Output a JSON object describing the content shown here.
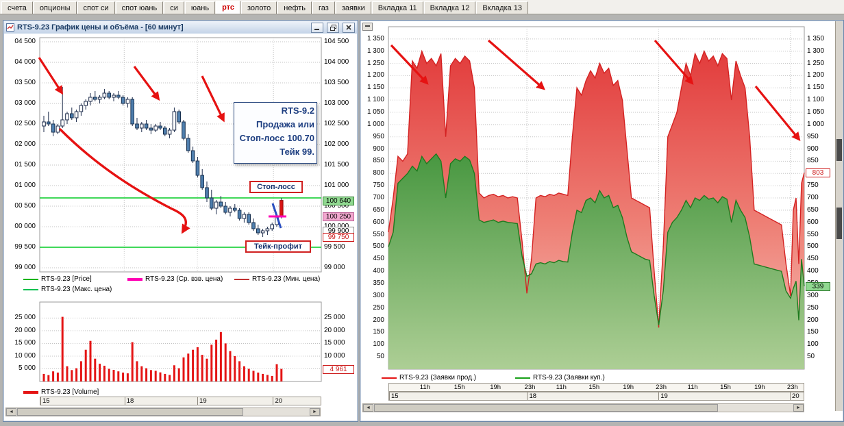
{
  "tabs": {
    "active": "ртс",
    "items": [
      {
        "label": "счета"
      },
      {
        "label": "опционы"
      },
      {
        "label": "спот си"
      },
      {
        "label": "спот юань"
      },
      {
        "label": "си"
      },
      {
        "label": "юань"
      },
      {
        "label": "ртс"
      },
      {
        "label": "золото"
      },
      {
        "label": "нефть"
      },
      {
        "label": "газ"
      },
      {
        "label": "заявки"
      },
      {
        "label": "Вкладка 11"
      },
      {
        "label": "Вкладка 12"
      },
      {
        "label": "Вкладка 13"
      }
    ]
  },
  "left_window": {
    "title": "RTS-9.23 График цены и объёма  - [60 минут]",
    "price_axis_left": [
      "04 500",
      "04 000",
      "03 500",
      "03 000",
      "02 500",
      "02 000",
      "01 500",
      "01 000",
      "00 500",
      "00 000",
      "99 500",
      "99 000"
    ],
    "price_axis_right": [
      "104 500",
      "104 000",
      "103 500",
      "103 000",
      "102 500",
      "102 000",
      "101 500",
      "101 000",
      "100 500",
      "100 000",
      "99 500",
      "99 000"
    ],
    "badges": [
      {
        "text": "100 640",
        "value": 100640,
        "type": "green"
      },
      {
        "text": "100 250",
        "value": 100250,
        "type": "pink"
      },
      {
        "text": "99 900",
        "value": 99900,
        "type": "plain"
      },
      {
        "text": "99 750",
        "value": 99750,
        "type": "red"
      }
    ],
    "note_lines": [
      "RTS-9.2",
      "Продажа или",
      "Стоп-лосс 100.70",
      "Тейк 99."
    ],
    "stop_label": "Стоп-лосс",
    "take_label": "Тейк-профит",
    "legend": [
      {
        "label": "RTS-9.23 [Price]",
        "color": "#00b400"
      },
      {
        "label": "RTS-9.23 (Ср. взв. цена)",
        "color": "#ff00b4",
        "thick": true
      },
      {
        "label": "RTS-9.23 (Мин. цена)",
        "color": "#c03030"
      },
      {
        "label": "RTS-9.23 (Макс. цена)",
        "color": "#00c050"
      }
    ],
    "volume_axis": [
      "25 000",
      "20 000",
      "15 000",
      "10 000",
      "5 000"
    ],
    "volume_badge": {
      "text": "4 961",
      "value": 4961
    },
    "volume_legend": [
      {
        "label": "RTS-9.23 [Volume]",
        "color": "#e41414",
        "thick": true
      }
    ]
  },
  "right_window": {
    "axis": [
      "1 350",
      "1 300",
      "1 250",
      "1 200",
      "1 150",
      "1 100",
      "1 050",
      "1 000",
      "950",
      "900",
      "850",
      "800",
      "750",
      "700",
      "650",
      "600",
      "550",
      "500",
      "450",
      "400",
      "350",
      "300",
      "250",
      "200",
      "150",
      "100",
      "50"
    ],
    "badges": [
      {
        "text": "803",
        "value": 803,
        "type": "red"
      },
      {
        "text": "339",
        "value": 339,
        "type": "green"
      }
    ],
    "legend": [
      {
        "label": "RTS-9.23 (Заявки прод.)",
        "color": "#e41414"
      },
      {
        "label": "RTS-9.23 (Заявки куп.)",
        "color": "#18a018"
      }
    ]
  },
  "chart_data": [
    {
      "id": "price",
      "type": "candlestick",
      "symbol": "RTS-9.23",
      "interval": "60 минут",
      "ylim": [
        98900,
        104600
      ],
      "y_step": 500,
      "levels": {
        "stop_loss": 100700,
        "take_profit": 99500,
        "last": 100640,
        "avg_weighted": 100250,
        "min": 99750
      },
      "day_labels": [
        "15",
        "18",
        "19",
        "20"
      ],
      "day_boundaries": [
        0,
        0.3,
        0.56,
        0.83,
        1
      ],
      "candles": [
        [
          102450,
          102700,
          102300,
          102550
        ],
        [
          102550,
          102800,
          102450,
          102500
        ],
        [
          102500,
          102600,
          102200,
          102300
        ],
        [
          102300,
          102500,
          102250,
          102450
        ],
        [
          102450,
          103400,
          102400,
          102600
        ],
        [
          102600,
          102800,
          102500,
          102750
        ],
        [
          102750,
          102900,
          102600,
          102650
        ],
        [
          102650,
          102850,
          102550,
          102800
        ],
        [
          102800,
          103000,
          102700,
          102950
        ],
        [
          102950,
          103100,
          102850,
          103050
        ],
        [
          103050,
          103250,
          102950,
          103150
        ],
        [
          103150,
          103300,
          103050,
          103100
        ],
        [
          103100,
          103200,
          103000,
          103150
        ],
        [
          103150,
          103350,
          103100,
          103250
        ],
        [
          103250,
          103300,
          103100,
          103150
        ],
        [
          103150,
          103250,
          103050,
          103200
        ],
        [
          103200,
          103300,
          103100,
          103150
        ],
        [
          103150,
          103200,
          102950,
          103000
        ],
        [
          103000,
          103150,
          102900,
          103100
        ],
        [
          103100,
          103150,
          102450,
          102500
        ],
        [
          102500,
          102650,
          102350,
          102400
        ],
        [
          102400,
          102550,
          102300,
          102500
        ],
        [
          102500,
          102600,
          102350,
          102400
        ],
        [
          102400,
          102500,
          102250,
          102350
        ],
        [
          102350,
          102500,
          102300,
          102450
        ],
        [
          102450,
          102550,
          102350,
          102400
        ],
        [
          102400,
          102450,
          102200,
          102250
        ],
        [
          102250,
          102400,
          102150,
          102350
        ],
        [
          102350,
          102900,
          102300,
          102800
        ],
        [
          102800,
          102850,
          102500,
          102550
        ],
        [
          102550,
          102600,
          102100,
          102150
        ],
        [
          102150,
          102250,
          101800,
          101850
        ],
        [
          101850,
          101950,
          101550,
          101600
        ],
        [
          101600,
          101700,
          101200,
          101250
        ],
        [
          101250,
          101400,
          100900,
          100950
        ],
        [
          100950,
          101100,
          100600,
          100700
        ],
        [
          100700,
          100900,
          100400,
          100450
        ],
        [
          100450,
          100650,
          100300,
          100600
        ],
        [
          100600,
          100750,
          100450,
          100500
        ],
        [
          100500,
          100600,
          100300,
          100350
        ],
        [
          100350,
          100500,
          100250,
          100450
        ],
        [
          100450,
          100550,
          100350,
          100400
        ],
        [
          100400,
          100450,
          100150,
          100200
        ],
        [
          100200,
          100350,
          100100,
          100300
        ],
        [
          100300,
          100350,
          100050,
          100100
        ],
        [
          100100,
          100200,
          99900,
          99950
        ],
        [
          99950,
          100050,
          99800,
          99850
        ],
        [
          99850,
          99950,
          99750,
          99900
        ],
        [
          99900,
          100000,
          99800,
          99950
        ],
        [
          99950,
          100100,
          99900,
          100050
        ],
        [
          100050,
          100300,
          100000,
          100250
        ],
        [
          100250,
          100700,
          100200,
          100640
        ]
      ]
    },
    {
      "id": "volume",
      "type": "bar",
      "symbol": "RTS-9.23",
      "ylabel": "Volume",
      "ylim": [
        0,
        27000
      ],
      "last": 4961,
      "values": [
        3000,
        2500,
        4000,
        3500,
        25500,
        6000,
        4500,
        5200,
        8000,
        12500,
        16000,
        9000,
        7000,
        6200,
        5000,
        4600,
        4000,
        3500,
        3200,
        15500,
        8000,
        6000,
        5200,
        4500,
        4200,
        3600,
        3000,
        2600,
        6400,
        5200,
        9500,
        11000,
        12500,
        13500,
        10500,
        9000,
        14500,
        16500,
        19500,
        15000,
        12000,
        10000,
        8000,
        6000,
        5000,
        4200,
        3500,
        3000,
        2600,
        2200,
        6800,
        4961
      ]
    },
    {
      "id": "orders",
      "type": "area",
      "ylim": [
        0,
        1400
      ],
      "y_step": 50,
      "day_labels": [
        "15",
        "18",
        "19",
        "20"
      ],
      "day_widths": [
        0.333,
        0.317,
        0.317,
        0.033
      ],
      "hour_labels": [
        "11h",
        "15h",
        "19h",
        "23h"
      ],
      "series": [
        {
          "name": "RTS-9.23 (Заявки прод.)",
          "color": "#dd2222",
          "last": 803,
          "days": [
            [
              560,
              700,
              870,
              850,
              880,
              1260,
              1230,
              1300,
              1250,
              1270,
              1240,
              1290,
              950,
              1240,
              1270,
              1250,
              1280,
              1260,
              1150,
              720,
              700,
              710,
              715,
              705,
              710,
              700,
              705,
              700,
              520,
              310
            ],
            [
              310,
              450,
              700,
              710,
              705,
              715,
              710,
              720,
              715,
              710,
              950,
              1150,
              1120,
              1180,
              1220,
              1190,
              1250,
              1210,
              1230,
              1160,
              1180,
              1100,
              900,
              700,
              690,
              680,
              670,
              660,
              400,
              170
            ],
            [
              180,
              500,
              950,
              1000,
              1050,
              1150,
              1250,
              1200,
              1290,
              1250,
              1300,
              1260,
              1280,
              1240,
              1290,
              1270,
              1100,
              1260,
              1200,
              1150,
              950,
              650,
              640,
              630,
              620,
              610,
              600,
              590,
              430,
              300
            ],
            [
              300,
              650,
              700,
              430,
              760,
              803
            ]
          ]
        },
        {
          "name": "RTS-9.23 (Заявки куп.)",
          "color": "#1e8f1e",
          "last": 339,
          "days": [
            [
              500,
              560,
              760,
              780,
              800,
              830,
              810,
              870,
              840,
              860,
              880,
              850,
              700,
              840,
              860,
              850,
              870,
              855,
              800,
              610,
              600,
              605,
              610,
              600,
              605,
              600,
              598,
              595,
              460,
              380
            ],
            [
              380,
              390,
              430,
              435,
              430,
              440,
              435,
              445,
              440,
              438,
              560,
              650,
              640,
              690,
              700,
              680,
              730,
              700,
              710,
              660,
              670,
              620,
              540,
              480,
              470,
              460,
              450,
              445,
              300,
              180
            ],
            [
              180,
              320,
              560,
              600,
              620,
              650,
              690,
              660,
              700,
              690,
              710,
              695,
              700,
              680,
              705,
              695,
              600,
              690,
              650,
              620,
              540,
              430,
              425,
              420,
              415,
              410,
              405,
              400,
              320,
              290
            ],
            [
              290,
              330,
              360,
              200,
              450,
              339
            ]
          ]
        }
      ]
    }
  ]
}
